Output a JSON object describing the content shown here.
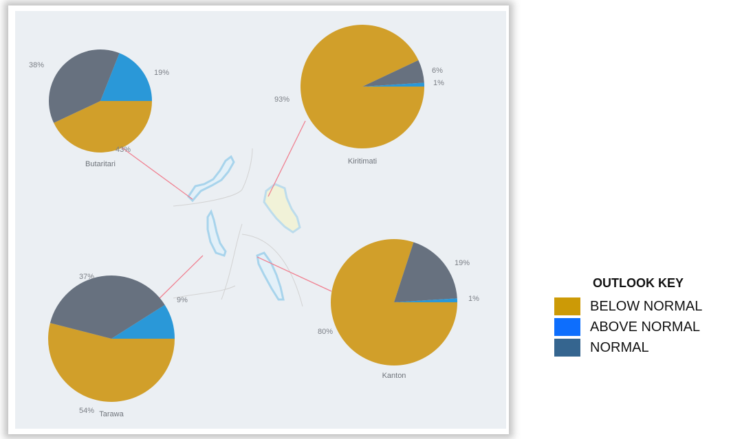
{
  "outlook_key": {
    "title": "OUTLOOK KEY",
    "items": [
      {
        "label": "BELOW NORMAL",
        "color": "#cc9a06"
      },
      {
        "label": "ABOVE NORMAL",
        "color": "#0d6efd"
      },
      {
        "label": "NORMAL",
        "color": "#35658f"
      }
    ]
  },
  "chart_data": [
    {
      "type": "pie",
      "title": "Butaritari",
      "categories": [
        "Below Normal",
        "Above Normal",
        "Normal"
      ],
      "values": [
        43,
        19,
        38
      ],
      "labels": [
        "43%",
        "19%",
        "38%"
      ]
    },
    {
      "type": "pie",
      "title": "Kiritimati",
      "categories": [
        "Below Normal",
        "Above Normal",
        "Normal"
      ],
      "values": [
        93,
        1,
        6
      ],
      "labels": [
        "93%",
        "1%",
        "6%"
      ]
    },
    {
      "type": "pie",
      "title": "Tarawa",
      "categories": [
        "Below Normal",
        "Above Normal",
        "Normal"
      ],
      "values": [
        54,
        9,
        37
      ],
      "labels": [
        "54%",
        "9%",
        "37%"
      ]
    },
    {
      "type": "pie",
      "title": "Kanton",
      "categories": [
        "Below Normal",
        "Above Normal",
        "Normal"
      ],
      "values": [
        80,
        1,
        19
      ],
      "labels": [
        "80%",
        "1%",
        "19%"
      ]
    }
  ],
  "pie_colors": {
    "below_normal": "#d19f2a",
    "above_normal": "#2a98d8",
    "normal": "#67717f"
  }
}
